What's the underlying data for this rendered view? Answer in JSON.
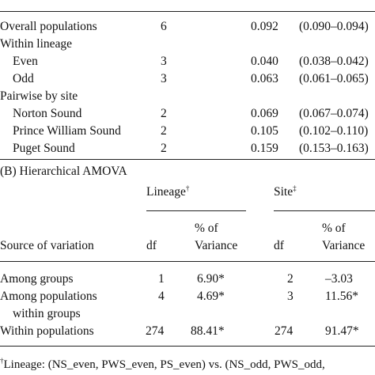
{
  "section_a": {
    "rows": [
      {
        "label": "Overall populations",
        "n": "6",
        "value": "0.092",
        "ci": "(0.090–0.094)"
      },
      {
        "label": "Within lineage",
        "n": "",
        "value": "",
        "ci": ""
      },
      {
        "label": "Even",
        "n": "3",
        "value": "0.040",
        "ci": "(0.038–0.042)"
      },
      {
        "label": "Odd",
        "n": "3",
        "value": "0.063",
        "ci": "(0.061–0.065)"
      },
      {
        "label": "Pairwise by site",
        "n": "",
        "value": "",
        "ci": ""
      },
      {
        "label": "Norton Sound",
        "n": "2",
        "value": "0.069",
        "ci": "(0.067–0.074)"
      },
      {
        "label": "Prince William Sound",
        "n": "2",
        "value": "0.105",
        "ci": "(0.102–0.110)"
      },
      {
        "label": "Puget Sound",
        "n": "2",
        "value": "0.159",
        "ci": "(0.153–0.163)"
      }
    ]
  },
  "section_b": {
    "title": "(B) Hierarchical AMOVA",
    "lineage_header": "Lineage",
    "lineage_mark": "†",
    "site_header": "Site",
    "site_mark": "‡",
    "col_source": "Source of variation",
    "col_df": "df",
    "col_pct_line1": "% of",
    "col_pct_line2": "Variance",
    "rows": [
      {
        "source": "Among groups",
        "source2": "",
        "df1": "1",
        "pct1": "6.90*",
        "df2": "2",
        "pct2": "–3.03"
      },
      {
        "source": "Among populations",
        "source2": "within groups",
        "df1": "4",
        "pct1": "4.69*",
        "df2": "3",
        "pct2": "11.56*"
      },
      {
        "source": "Within populations",
        "source2": "",
        "df1": "274",
        "pct1": "88.41*",
        "df2": "274",
        "pct2": "91.47*"
      }
    ]
  },
  "footnote": {
    "mark": "†",
    "text": "Lineage: (NS_even, PWS_even, PS_even) vs. (NS_odd, PWS_odd,"
  }
}
